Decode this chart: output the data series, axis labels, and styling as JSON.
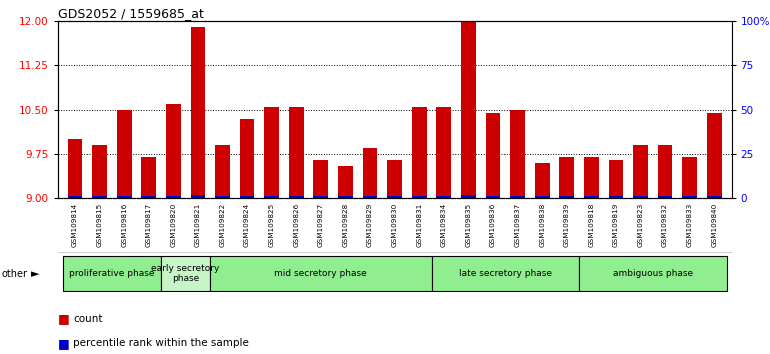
{
  "title": "GDS2052 / 1559685_at",
  "samples": [
    "GSM109814",
    "GSM109815",
    "GSM109816",
    "GSM109817",
    "GSM109820",
    "GSM109821",
    "GSM109822",
    "GSM109824",
    "GSM109825",
    "GSM109826",
    "GSM109827",
    "GSM109828",
    "GSM109829",
    "GSM109830",
    "GSM109831",
    "GSM109834",
    "GSM109835",
    "GSM109836",
    "GSM109837",
    "GSM109838",
    "GSM109839",
    "GSM109818",
    "GSM109819",
    "GSM109823",
    "GSM109832",
    "GSM109833",
    "GSM109840"
  ],
  "counts": [
    10.0,
    9.9,
    10.5,
    9.7,
    10.6,
    11.9,
    9.9,
    10.35,
    10.55,
    10.55,
    9.65,
    9.55,
    9.85,
    9.65,
    10.55,
    10.55,
    12.0,
    10.45,
    10.5,
    9.6,
    9.7,
    9.7,
    9.65,
    9.9,
    9.9,
    9.7,
    10.45
  ],
  "percentile": [
    0,
    0,
    0,
    0,
    0,
    2,
    0,
    0,
    0,
    0,
    0,
    0,
    0,
    0,
    0,
    0,
    2,
    0,
    0,
    0,
    0,
    0,
    0,
    0,
    0,
    0,
    0
  ],
  "phases": [
    {
      "label": "proliferative phase",
      "start": 0,
      "end": 4,
      "color": "#90EE90"
    },
    {
      "label": "early secretory\nphase",
      "start": 4,
      "end": 6,
      "color": "#c8f5c8"
    },
    {
      "label": "mid secretory phase",
      "start": 6,
      "end": 15,
      "color": "#90EE90"
    },
    {
      "label": "late secretory phase",
      "start": 15,
      "end": 21,
      "color": "#90EE90"
    },
    {
      "label": "ambiguous phase",
      "start": 21,
      "end": 27,
      "color": "#90EE90"
    }
  ],
  "ylim": [
    9.0,
    12.0
  ],
  "yticks_left": [
    9.0,
    9.75,
    10.5,
    11.25,
    12.0
  ],
  "yticks_right": [
    0,
    25,
    50,
    75,
    100
  ],
  "bar_color": "#cc0000",
  "percentile_color": "#0000cc",
  "background_color": "#ffffff",
  "xtick_bg": "#d8d8d8"
}
